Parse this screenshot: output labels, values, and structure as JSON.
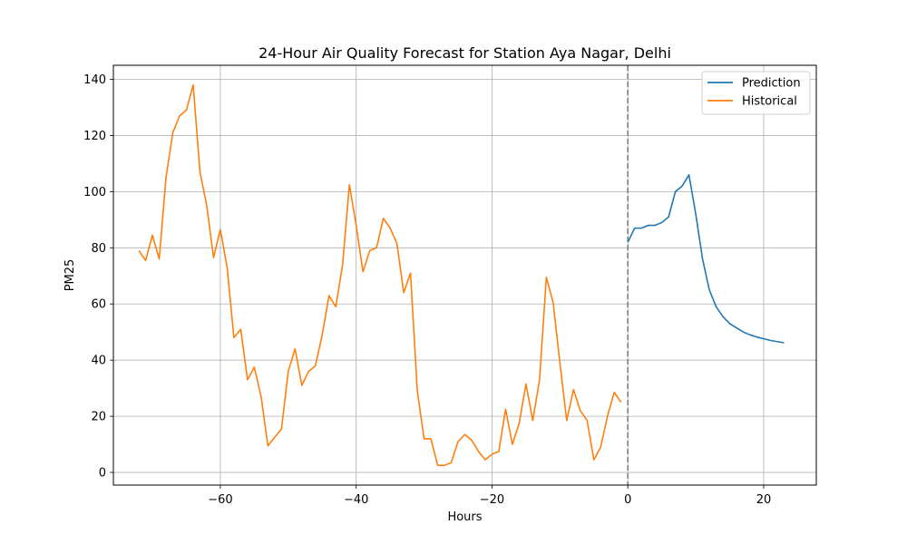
{
  "chart_data": {
    "type": "line",
    "title": "24-Hour Air Quality Forecast for Station Aya Nagar, Delhi",
    "xlabel": "Hours",
    "ylabel": "PM25",
    "xlim": [
      -75.75,
      27.75
    ],
    "ylim": [
      -4.5,
      145
    ],
    "xticks": [
      -60,
      -40,
      -20,
      0,
      20
    ],
    "xtick_labels": [
      "−60",
      "−40",
      "−20",
      "0",
      "20"
    ],
    "yticks": [
      0,
      20,
      40,
      60,
      80,
      100,
      120,
      140
    ],
    "ytick_labels": [
      "0",
      "20",
      "40",
      "60",
      "80",
      "100",
      "120",
      "140"
    ],
    "grid": true,
    "legend_position": "top-right",
    "vline": {
      "x": 0,
      "style": "dashed",
      "color": "#7f7f7f"
    },
    "series": [
      {
        "name": "Prediction",
        "color": "#1f77b4",
        "x": [
          0,
          1,
          2,
          3,
          4,
          5,
          6,
          7,
          8,
          9,
          10,
          11,
          12,
          13,
          14,
          15,
          16,
          17,
          18,
          19,
          20,
          21,
          22,
          23
        ],
        "y": [
          82,
          87,
          87,
          88,
          88,
          89,
          91,
          100,
          102,
          106,
          92,
          76,
          65,
          59,
          55.5,
          53,
          51.5,
          50,
          49,
          48.2,
          47.6,
          47,
          46.6,
          46.2
        ]
      },
      {
        "name": "Historical",
        "color": "#ff7f0e",
        "x": [
          -72,
          -71,
          -70,
          -69,
          -68,
          -67,
          -66,
          -65,
          -64,
          -63,
          -62,
          -61,
          -60,
          -59,
          -58,
          -57,
          -56,
          -55,
          -54,
          -53,
          -52,
          -51,
          -50,
          -49,
          -48,
          -47,
          -46,
          -45,
          -44,
          -43,
          -42,
          -41,
          -40,
          -39,
          -38,
          -37,
          -36,
          -35,
          -34,
          -33,
          -32,
          -31,
          -30,
          -29,
          -28,
          -27,
          -26,
          -25,
          -24,
          -23,
          -22,
          -21,
          -20,
          -19,
          -18,
          -17,
          -16,
          -15,
          -14,
          -13,
          -12,
          -11,
          -10,
          -9,
          -8,
          -7,
          -6,
          -5,
          -4,
          -3,
          -2,
          -1
        ],
        "y": [
          79,
          75.5,
          84.5,
          76,
          105,
          121,
          127,
          129,
          138,
          107,
          95,
          76.5,
          86.5,
          73,
          48,
          51,
          33,
          37.5,
          27,
          9.5,
          12.5,
          15.5,
          36,
          44,
          31,
          36,
          38,
          49,
          63,
          59,
          74,
          102.5,
          88,
          71.5,
          79,
          80,
          90.5,
          87,
          81.5,
          64,
          71,
          29,
          12,
          12,
          2.5,
          2.5,
          3.5,
          11,
          13.5,
          11.5,
          7.5,
          4.5,
          6.5,
          7.5,
          22.5,
          10,
          17.5,
          31.5,
          18.5,
          33,
          69.5,
          60.5,
          39,
          18.5,
          29.5,
          22,
          18.5,
          4.5,
          9,
          20,
          28.5,
          25
        ]
      }
    ]
  }
}
